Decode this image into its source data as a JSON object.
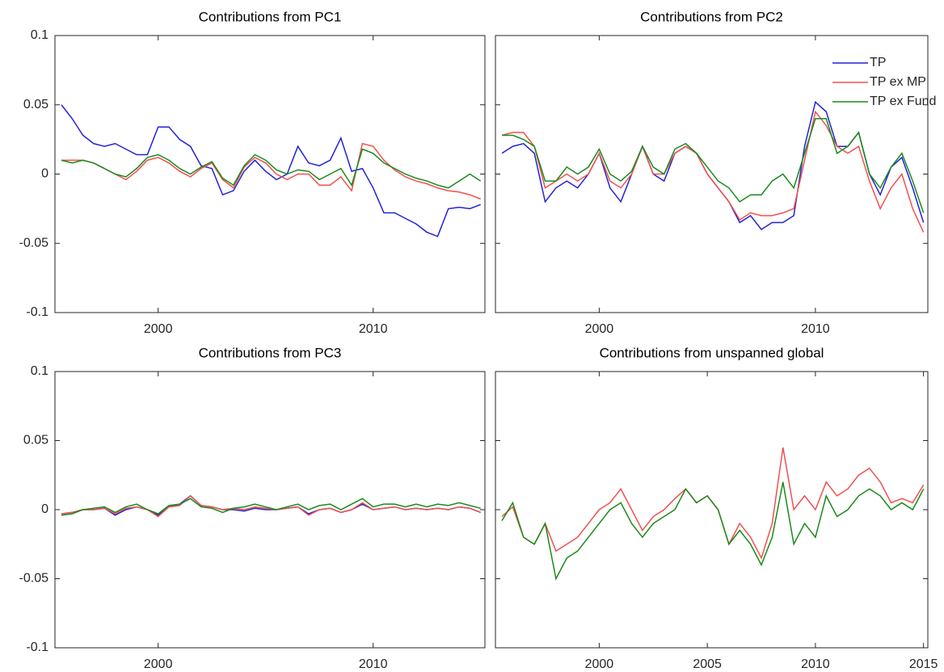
{
  "chart_data": [
    {
      "type": "line",
      "title": "Contributions from PC1",
      "x": [
        1995.5,
        1996,
        1996.5,
        1997,
        1997.5,
        1998,
        1998.5,
        1999,
        1999.5,
        2000,
        2000.5,
        2001,
        2001.5,
        2002,
        2002.5,
        2003,
        2003.5,
        2004,
        2004.5,
        2005,
        2005.5,
        2006,
        2006.5,
        2007,
        2007.5,
        2008,
        2008.5,
        2009,
        2009.5,
        2010,
        2010.5,
        2011,
        2011.5,
        2012,
        2012.5,
        2013,
        2013.5,
        2014,
        2014.5,
        2015
      ],
      "xlim": [
        1995.2,
        2015.2
      ],
      "xticks": [
        2000,
        2010
      ],
      "ylim": [
        -0.1,
        0.1
      ],
      "yticks": [
        -0.1,
        -0.05,
        0,
        0.05,
        0.1
      ],
      "series": [
        {
          "color": "#2222d4",
          "values": [
            0.05,
            0.04,
            0.028,
            0.022,
            0.02,
            0.022,
            0.018,
            0.014,
            0.014,
            0.034,
            0.034,
            0.025,
            0.02,
            0.006,
            0.004,
            -0.015,
            -0.012,
            0.002,
            0.01,
            0.002,
            -0.004,
            0.0,
            0.02,
            0.008,
            0.006,
            0.01,
            0.026,
            0.002,
            0.004,
            -0.01,
            -0.028,
            -0.028,
            -0.032,
            -0.036,
            -0.042,
            -0.045,
            -0.025,
            -0.024,
            -0.025,
            -0.022
          ]
        },
        {
          "color": "#f05050",
          "values": [
            0.01,
            0.01,
            0.01,
            0.008,
            0.004,
            0.0,
            -0.004,
            0.002,
            0.01,
            0.012,
            0.008,
            0.002,
            -0.002,
            0.004,
            0.008,
            -0.004,
            -0.01,
            0.005,
            0.012,
            0.008,
            0.0,
            -0.004,
            0.0,
            0.0,
            -0.008,
            -0.008,
            -0.002,
            -0.012,
            0.022,
            0.02,
            0.01,
            0.003,
            -0.002,
            -0.005,
            -0.007,
            -0.01,
            -0.012,
            -0.013,
            -0.015,
            -0.018
          ]
        },
        {
          "color": "#1a8a1a",
          "values": [
            0.01,
            0.008,
            0.01,
            0.008,
            0.004,
            0.0,
            -0.002,
            0.004,
            0.012,
            0.014,
            0.01,
            0.004,
            0.0,
            0.005,
            0.009,
            -0.003,
            -0.008,
            0.006,
            0.014,
            0.01,
            0.003,
            0.0,
            0.003,
            0.002,
            -0.004,
            0.0,
            0.004,
            -0.008,
            0.018,
            0.015,
            0.008,
            0.004,
            0.0,
            -0.003,
            -0.005,
            -0.008,
            -0.01,
            -0.005,
            0.0,
            -0.005
          ]
        }
      ]
    },
    {
      "type": "line",
      "title": "Contributions from PC2",
      "legend": "upper right",
      "x": [
        1995.5,
        1996,
        1996.5,
        1997,
        1997.5,
        1998,
        1998.5,
        1999,
        1999.5,
        2000,
        2000.5,
        2001,
        2001.5,
        2002,
        2002.5,
        2003,
        2003.5,
        2004,
        2004.5,
        2005,
        2005.5,
        2006,
        2006.5,
        2007,
        2007.5,
        2008,
        2008.5,
        2009,
        2009.5,
        2010,
        2010.5,
        2011,
        2011.5,
        2012,
        2012.5,
        2013,
        2013.5,
        2014,
        2014.5,
        2015
      ],
      "xlim": [
        1995.2,
        2015.2
      ],
      "xticks": [
        2000,
        2010
      ],
      "ylim": [
        -0.1,
        0.1
      ],
      "yticks": [
        -0.1,
        -0.05,
        0,
        0.05,
        0.1
      ],
      "series": [
        {
          "name": "TP",
          "color": "#2222d4",
          "values": [
            0.015,
            0.02,
            0.022,
            0.015,
            -0.02,
            -0.01,
            -0.005,
            -0.01,
            0.0,
            0.015,
            -0.01,
            -0.02,
            0.0,
            0.02,
            0.0,
            -0.005,
            0.015,
            0.02,
            0.015,
            0.0,
            -0.01,
            -0.02,
            -0.035,
            -0.03,
            -0.04,
            -0.035,
            -0.035,
            -0.03,
            0.02,
            0.052,
            0.045,
            0.02,
            0.02,
            0.03,
            0.0,
            -0.015,
            0.005,
            0.012,
            -0.01,
            -0.035
          ]
        },
        {
          "name": "TP ex MP",
          "color": "#f05050",
          "values": [
            0.028,
            0.03,
            0.03,
            0.02,
            -0.01,
            -0.005,
            0.0,
            -0.005,
            0.0,
            0.015,
            -0.005,
            -0.01,
            0.0,
            0.02,
            0.0,
            0.0,
            0.015,
            0.02,
            0.015,
            0.0,
            -0.01,
            -0.02,
            -0.033,
            -0.028,
            -0.03,
            -0.03,
            -0.028,
            -0.025,
            0.01,
            0.045,
            0.035,
            0.02,
            0.015,
            0.02,
            -0.005,
            -0.025,
            -0.01,
            0.0,
            -0.025,
            -0.042
          ]
        },
        {
          "name": "TP ex Fund",
          "color": "#1a8a1a",
          "values": [
            0.028,
            0.028,
            0.025,
            0.02,
            -0.005,
            -0.005,
            0.005,
            0.0,
            0.005,
            0.018,
            0.0,
            -0.005,
            0.002,
            0.02,
            0.005,
            0.0,
            0.018,
            0.022,
            0.015,
            0.005,
            -0.005,
            -0.01,
            -0.02,
            -0.015,
            -0.015,
            -0.005,
            0.0,
            -0.01,
            0.015,
            0.04,
            0.04,
            0.015,
            0.02,
            0.03,
            0.0,
            -0.01,
            0.005,
            0.015,
            -0.005,
            -0.028
          ]
        }
      ]
    },
    {
      "type": "line",
      "title": "Contributions from PC3",
      "x": [
        1995.5,
        1996,
        1996.5,
        1997,
        1997.5,
        1998,
        1998.5,
        1999,
        1999.5,
        2000,
        2000.5,
        2001,
        2001.5,
        2002,
        2002.5,
        2003,
        2003.5,
        2004,
        2004.5,
        2005,
        2005.5,
        2006,
        2006.5,
        2007,
        2007.5,
        2008,
        2008.5,
        2009,
        2009.5,
        2010,
        2010.5,
        2011,
        2011.5,
        2012,
        2012.5,
        2013,
        2013.5,
        2014,
        2014.5,
        2015
      ],
      "xlim": [
        1995.2,
        2015.2
      ],
      "xticks": [
        2000,
        2010
      ],
      "ylim": [
        -0.1,
        0.1
      ],
      "yticks": [
        -0.1,
        -0.05,
        0,
        0.05,
        0.1
      ],
      "series": [
        {
          "color": "#2222d4",
          "values": [
            -0.003,
            -0.002,
            0.0,
            0.0,
            0.001,
            -0.004,
            0.0,
            0.002,
            0.0,
            -0.004,
            0.002,
            0.004,
            0.01,
            0.003,
            0.002,
            0.0,
            0.0,
            -0.001,
            0.001,
            0.0,
            0.0,
            0.001,
            0.002,
            -0.003,
            0.0,
            0.001,
            -0.002,
            0.0,
            0.004,
            0.0,
            0.001,
            0.002,
            0.0,
            0.001,
            0.0,
            0.001,
            0.0,
            0.002,
            0.001,
            -0.002
          ]
        },
        {
          "color": "#f05050",
          "values": [
            -0.003,
            -0.002,
            0.0,
            0.0,
            0.001,
            -0.003,
            0.001,
            0.002,
            0.0,
            -0.005,
            0.002,
            0.003,
            0.01,
            0.003,
            0.002,
            0.0,
            0.001,
            0.0,
            0.002,
            0.001,
            0.0,
            0.001,
            0.002,
            -0.004,
            0.0,
            0.001,
            -0.002,
            0.0,
            0.005,
            0.0,
            0.001,
            0.002,
            0.0,
            0.001,
            0.0,
            0.001,
            0.0,
            0.002,
            0.001,
            -0.002
          ]
        },
        {
          "color": "#1a8a1a",
          "values": [
            -0.004,
            -0.003,
            0.0,
            0.001,
            0.002,
            -0.002,
            0.002,
            0.004,
            0.0,
            -0.003,
            0.003,
            0.004,
            0.008,
            0.002,
            0.001,
            -0.002,
            0.001,
            0.002,
            0.004,
            0.002,
            0.0,
            0.002,
            0.004,
            0.0,
            0.003,
            0.004,
            0.0,
            0.004,
            0.008,
            0.002,
            0.004,
            0.004,
            0.002,
            0.004,
            0.002,
            0.004,
            0.003,
            0.005,
            0.003,
            0.001
          ]
        }
      ]
    },
    {
      "type": "line",
      "title": "Contributions from unspanned global",
      "x": [
        1995.5,
        1996,
        1996.5,
        1997,
        1997.5,
        1998,
        1998.5,
        1999,
        1999.5,
        2000,
        2000.5,
        2001,
        2001.5,
        2002,
        2002.5,
        2003,
        2003.5,
        2004,
        2004.5,
        2005,
        2005.5,
        2006,
        2006.5,
        2007,
        2007.5,
        2008,
        2008.5,
        2009,
        2009.5,
        2010,
        2010.5,
        2011,
        2011.5,
        2012,
        2012.5,
        2013,
        2013.5,
        2014,
        2014.5,
        2015
      ],
      "xlim": [
        1995.2,
        2015.2
      ],
      "xticks": [
        2000,
        2005,
        2010,
        2015
      ],
      "ylim": [
        -0.1,
        0.1
      ],
      "yticks": [
        -0.1,
        -0.05,
        0,
        0.05,
        0.1
      ],
      "series": [
        {
          "color": "#f05050",
          "values": [
            -0.005,
            0.002,
            -0.02,
            -0.025,
            -0.01,
            -0.03,
            -0.025,
            -0.02,
            -0.01,
            0.0,
            0.005,
            0.015,
            0.0,
            -0.015,
            -0.005,
            0.0,
            0.008,
            0.015,
            0.005,
            0.01,
            0.0,
            -0.025,
            -0.01,
            -0.02,
            -0.035,
            -0.01,
            0.045,
            0.0,
            0.01,
            0.0,
            0.02,
            0.01,
            0.015,
            0.025,
            0.03,
            0.02,
            0.005,
            0.008,
            0.005,
            0.018
          ]
        },
        {
          "color": "#1a8a1a",
          "values": [
            -0.008,
            0.005,
            -0.02,
            -0.025,
            -0.01,
            -0.05,
            -0.035,
            -0.03,
            -0.02,
            -0.01,
            0.0,
            0.005,
            -0.01,
            -0.02,
            -0.01,
            -0.005,
            0.0,
            0.015,
            0.005,
            0.01,
            0.0,
            -0.025,
            -0.015,
            -0.025,
            -0.04,
            -0.02,
            0.02,
            -0.025,
            -0.01,
            -0.02,
            0.01,
            -0.005,
            0.0,
            0.01,
            0.015,
            0.01,
            0.0,
            0.005,
            0.0,
            0.015
          ]
        }
      ]
    }
  ]
}
